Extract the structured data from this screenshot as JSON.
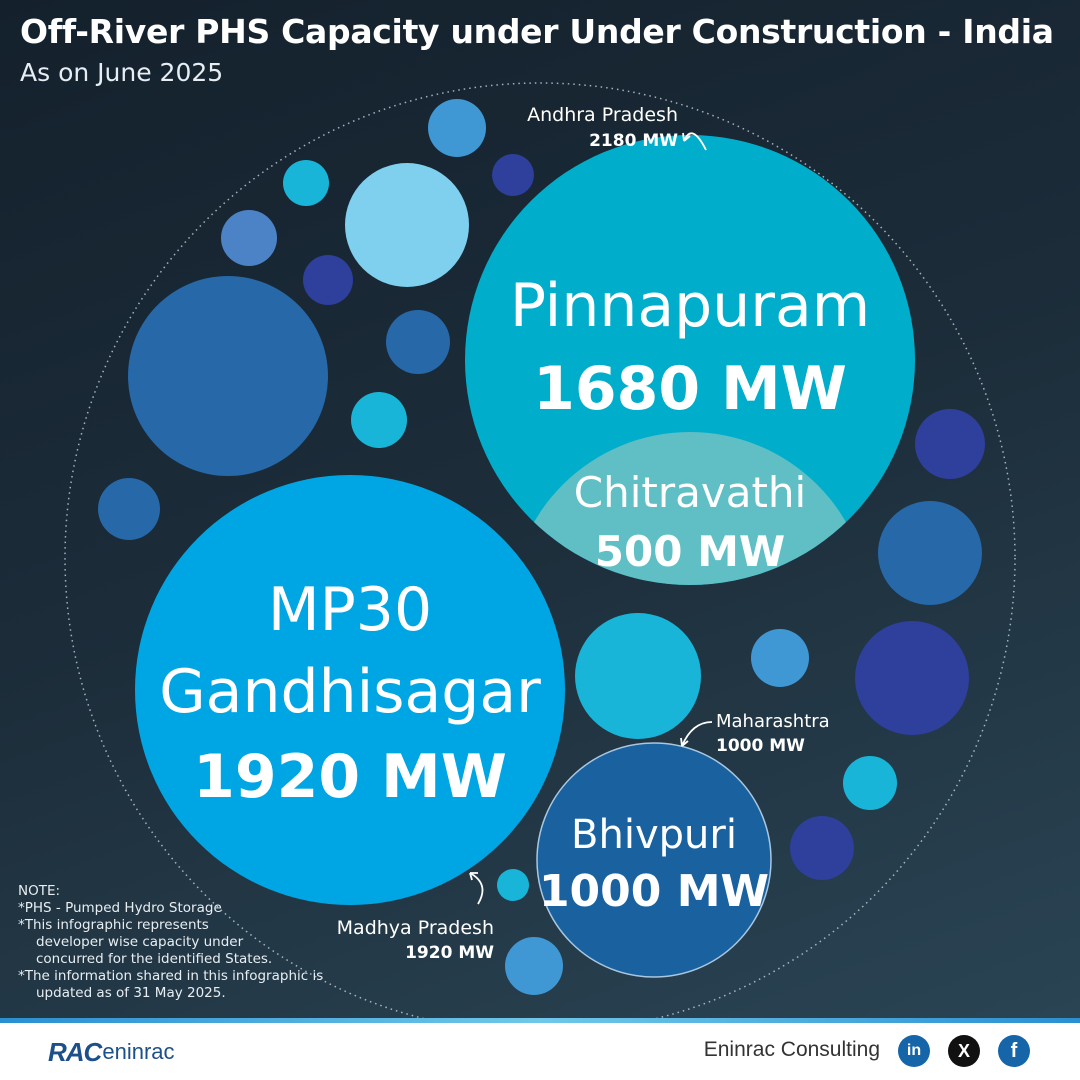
{
  "header": {
    "title": "Off-River PHS Capacity under Under Construction - India",
    "subtitle": "As on June 2025"
  },
  "chart_data": {
    "type": "bubble",
    "unit": "MW",
    "projects": [
      {
        "name_lines": [
          "Pinnapuram"
        ],
        "value_label": "1680 MW",
        "value": 1680,
        "state": "Andhra Pradesh",
        "color": "#00aecb"
      },
      {
        "name_lines": [
          "Chitravathi"
        ],
        "value_label": "500 MW",
        "value": 500,
        "state": "Andhra Pradesh",
        "color": "#5fbfc4"
      },
      {
        "name_lines": [
          "MP30",
          "Gandhisagar"
        ],
        "value_label": "1920 MW",
        "value": 1920,
        "state": "Madhya Pradesh",
        "color": "#00a6e3"
      },
      {
        "name_lines": [
          "Bhivpuri"
        ],
        "value_label": "1000 MW",
        "value": 1000,
        "state": "Maharashtra",
        "color": "#1a61a0"
      }
    ],
    "states": [
      {
        "name": "Andhra Pradesh",
        "total_label": "2180 MW",
        "total": 2180
      },
      {
        "name": "Madhya Pradesh",
        "total_label": "1920 MW",
        "total": 1920
      },
      {
        "name": "Maharashtra",
        "total_label": "1000 MW",
        "total": 1000
      }
    ]
  },
  "notes": {
    "heading": "NOTE:",
    "line1": "*PHS - Pumped Hydro Storage",
    "line2a": "*This infographic represents",
    "line2b": "developer wise capacity under",
    "line2c": "concurred for the identified States.",
    "line3a": "*The information shared in this infographic is",
    "line3b": "updated as of 31 May 2025."
  },
  "footer": {
    "logo_mark": "RAC",
    "logo_word": "eninrac",
    "brand": "Eninrac Consulting",
    "social": {
      "linkedin": "in",
      "x": "X",
      "facebook": "f"
    }
  },
  "colors": {
    "decor": [
      "#3f97d4",
      "#7fcfee",
      "#2e3f9c",
      "#19b5d8",
      "#2768a8",
      "#4c82c6",
      "#16a9cf"
    ]
  }
}
